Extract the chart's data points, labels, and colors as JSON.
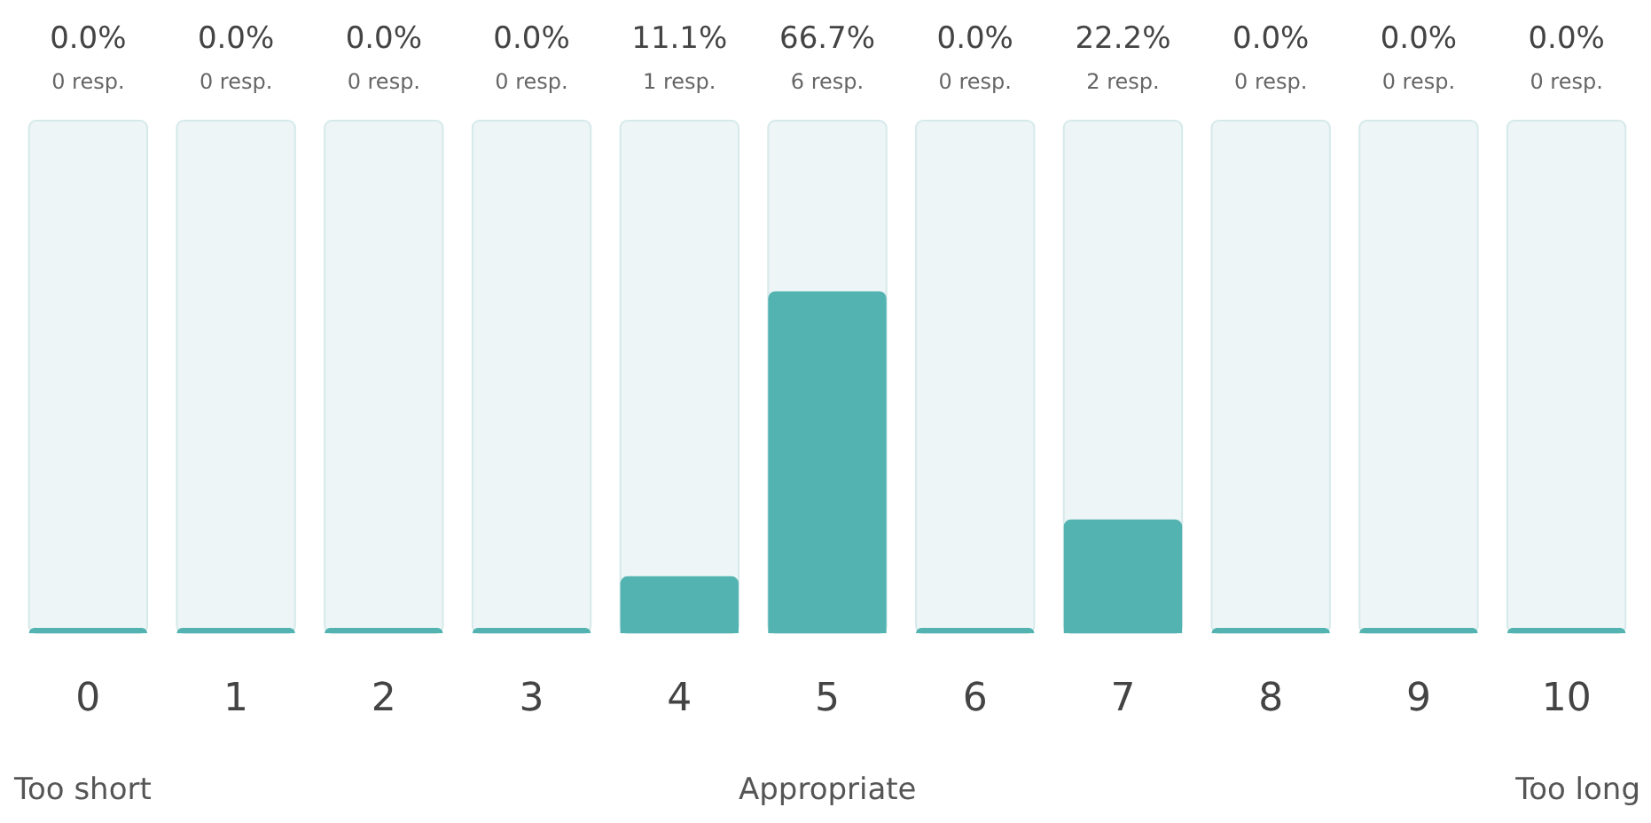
{
  "chart_data": {
    "type": "bar",
    "categories": [
      "0",
      "1",
      "2",
      "3",
      "4",
      "5",
      "6",
      "7",
      "8",
      "9",
      "10"
    ],
    "values": [
      0,
      0,
      0,
      0,
      11.1,
      66.7,
      0,
      22.2,
      0,
      0,
      0
    ],
    "value_labels": [
      "0.0%\n0 resp.",
      "0.0%\n0 resp.",
      "0.0%\n0 resp.",
      "0.0%\n0 resp.",
      "11.1%\n1 resp.",
      "66.7%\n6 resp.",
      "0.0%\n0 resp.",
      "22.2%\n2 resp.",
      "0.0%\n0 resp.",
      "0.0%\n0 resp.",
      "0.0%\n0 resp."
    ],
    "color": "#52b3b1",
    "ylim": [
      0,
      100
    ],
    "tick_labels": "x",
    "annotations": [
      "Too short",
      "Appropriate",
      "Too long"
    ]
  }
}
